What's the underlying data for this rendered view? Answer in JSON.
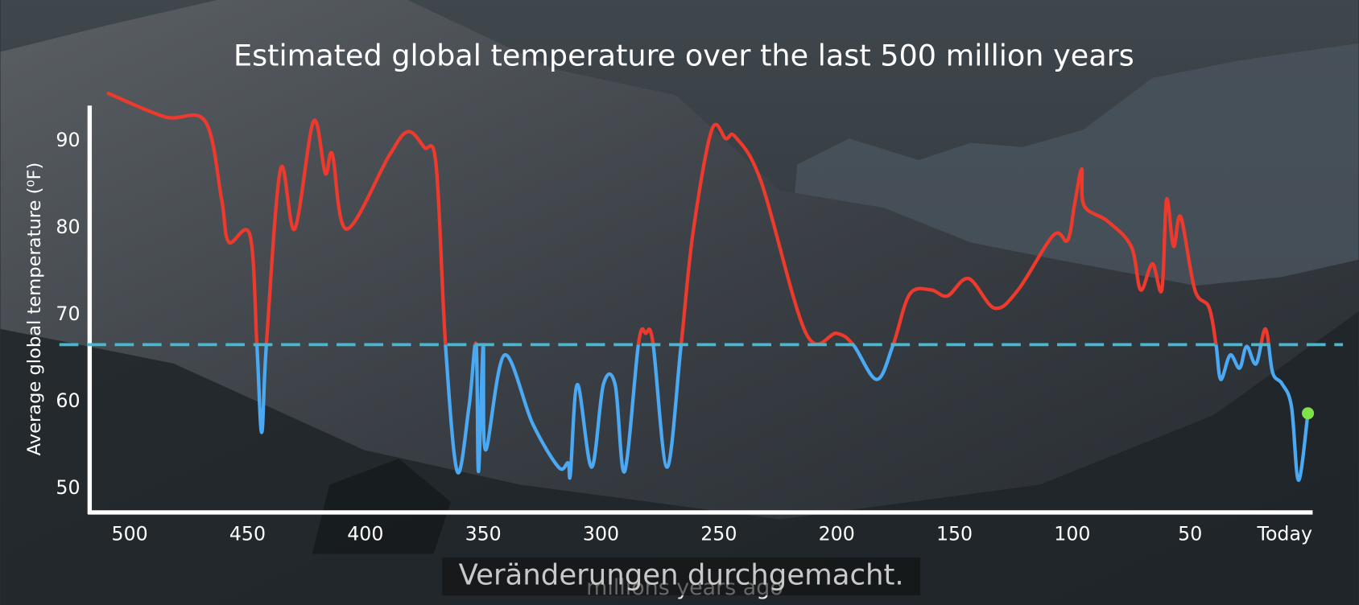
{
  "chart_data": {
    "type": "line",
    "title": "Estimated global temperature over the last 500 million years",
    "ylabel": "Average global temperature (⁰F)",
    "xlabel": "millions years ago",
    "caption": "Veränderungen durchgemacht.",
    "x": [
      509,
      485,
      468,
      461,
      458,
      449,
      446,
      444,
      442,
      436,
      430,
      422,
      417,
      414,
      408,
      390,
      382,
      375,
      370,
      366,
      361,
      356,
      353,
      352,
      350,
      349,
      341,
      329,
      318,
      314,
      313,
      310,
      304,
      299,
      294,
      290,
      284,
      281,
      278,
      272,
      266,
      261,
      253,
      247,
      243,
      232,
      213,
      200,
      193,
      183,
      176,
      169,
      160,
      153,
      144,
      133,
      123,
      108,
      102,
      99,
      96,
      95,
      85,
      75,
      71,
      66,
      62,
      60,
      57,
      54,
      48,
      42,
      39,
      37,
      33,
      29,
      26,
      22,
      18,
      15,
      11,
      7,
      4,
      0
    ],
    "values": [
      95.5,
      92.8,
      92.3,
      83.3,
      78.4,
      79.2,
      66.4,
      56.5,
      66.6,
      86.8,
      79.9,
      92.3,
      86.3,
      88.5,
      79.9,
      88.3,
      91.1,
      89.3,
      87.3,
      66.6,
      52,
      59.5,
      66.6,
      52,
      66.6,
      54.5,
      65.4,
      57.5,
      52.5,
      53,
      51.7,
      62,
      52.5,
      62,
      62,
      52,
      66.9,
      67.9,
      66.9,
      52.5,
      66.6,
      79.4,
      91.3,
      90.3,
      90.5,
      85.3,
      67.9,
      67.9,
      66.6,
      62.6,
      66.6,
      72.4,
      72.9,
      72.2,
      74.2,
      70.8,
      72.9,
      79.2,
      78.6,
      82.8,
      86.8,
      82.6,
      80.8,
      77.9,
      72.9,
      75.9,
      72.9,
      83.3,
      77.9,
      81.3,
      72.9,
      70.9,
      66.6,
      62.6,
      65.4,
      63.9,
      66.4,
      64.4,
      68.4,
      63.4,
      62.1,
      59.5,
      51,
      58.7
    ],
    "color_above": "#ee3a2c",
    "color_below": "#4aa9f2",
    "reference_line": {
      "value": 66.6,
      "color": "#45b9d2"
    },
    "end_marker_color": "#7fe24a",
    "xlim": [
      517,
      -2
    ],
    "xticks": [
      500,
      450,
      400,
      350,
      300,
      250,
      200,
      150,
      100,
      50,
      {
        "value": 0,
        "label": "Today"
      }
    ],
    "ylim": [
      47.3,
      94.1
    ],
    "yticks": [
      50,
      60,
      70,
      80,
      90
    ]
  }
}
